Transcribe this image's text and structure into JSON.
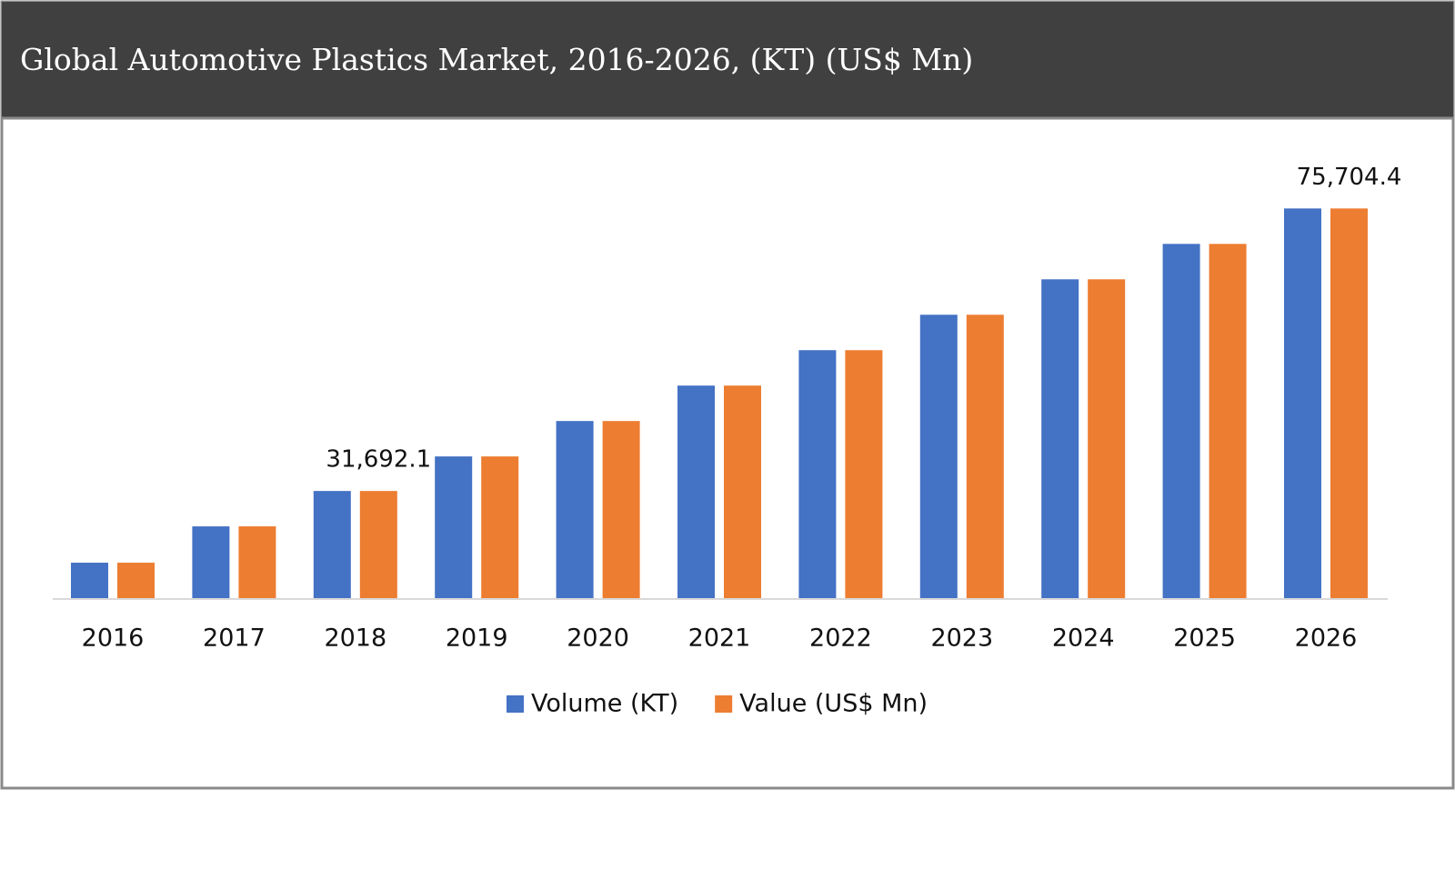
{
  "chart_data": {
    "type": "bar",
    "title": "Global Automotive Plastics Market, 2016-2026, (KT) (US$ Mn)",
    "categories": [
      "2016",
      "2017",
      "2018",
      "2019",
      "2020",
      "2021",
      "2022",
      "2023",
      "2024",
      "2025",
      "2026"
    ],
    "series": [
      {
        "name": "Volume (KT)",
        "color": "#4472c4",
        "values": [
          20518,
          26178,
          31692.1,
          37073,
          42592,
          48110,
          53629,
          59147,
          64666,
          70184,
          75704.4
        ]
      },
      {
        "name": "Value (US$ Mn)",
        "color": "#ed7d31",
        "values": [
          20518,
          26178,
          31692.1,
          37073,
          42592,
          48110,
          53629,
          59147,
          64666,
          70184,
          75704.4
        ],
        "value_labels": [
          null,
          null,
          "31,692.1",
          null,
          null,
          null,
          null,
          null,
          null,
          null,
          "75,704.4"
        ]
      }
    ],
    "ylim": [
      15000,
      80000
    ],
    "legend": "bottom"
  }
}
